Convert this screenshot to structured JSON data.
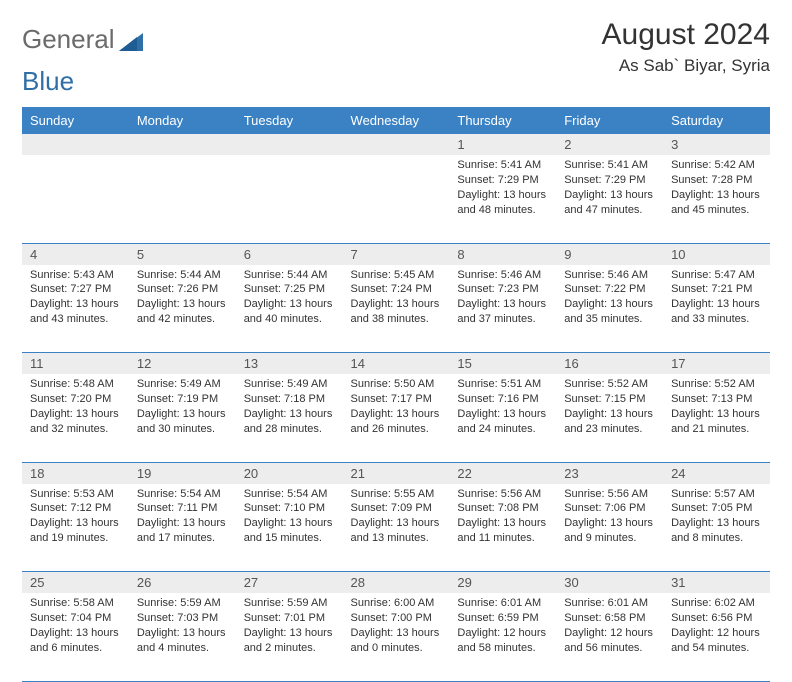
{
  "logo": {
    "text1": "General",
    "text2": "Blue",
    "color1": "#6b6b6b",
    "color2": "#2f6fa8"
  },
  "title": "August 2024",
  "location": "As Sab` Biyar, Syria",
  "header_bg": "#3b82c4",
  "daynum_bg": "#ededed",
  "border_color": "#3b82c4",
  "days": [
    "Sunday",
    "Monday",
    "Tuesday",
    "Wednesday",
    "Thursday",
    "Friday",
    "Saturday"
  ],
  "weeks": [
    [
      null,
      null,
      null,
      null,
      {
        "n": "1",
        "sr": "5:41 AM",
        "ss": "7:29 PM",
        "dh": "13",
        "dm": "48"
      },
      {
        "n": "2",
        "sr": "5:41 AM",
        "ss": "7:29 PM",
        "dh": "13",
        "dm": "47"
      },
      {
        "n": "3",
        "sr": "5:42 AM",
        "ss": "7:28 PM",
        "dh": "13",
        "dm": "45"
      }
    ],
    [
      {
        "n": "4",
        "sr": "5:43 AM",
        "ss": "7:27 PM",
        "dh": "13",
        "dm": "43"
      },
      {
        "n": "5",
        "sr": "5:44 AM",
        "ss": "7:26 PM",
        "dh": "13",
        "dm": "42"
      },
      {
        "n": "6",
        "sr": "5:44 AM",
        "ss": "7:25 PM",
        "dh": "13",
        "dm": "40"
      },
      {
        "n": "7",
        "sr": "5:45 AM",
        "ss": "7:24 PM",
        "dh": "13",
        "dm": "38"
      },
      {
        "n": "8",
        "sr": "5:46 AM",
        "ss": "7:23 PM",
        "dh": "13",
        "dm": "37"
      },
      {
        "n": "9",
        "sr": "5:46 AM",
        "ss": "7:22 PM",
        "dh": "13",
        "dm": "35"
      },
      {
        "n": "10",
        "sr": "5:47 AM",
        "ss": "7:21 PM",
        "dh": "13",
        "dm": "33"
      }
    ],
    [
      {
        "n": "11",
        "sr": "5:48 AM",
        "ss": "7:20 PM",
        "dh": "13",
        "dm": "32"
      },
      {
        "n": "12",
        "sr": "5:49 AM",
        "ss": "7:19 PM",
        "dh": "13",
        "dm": "30"
      },
      {
        "n": "13",
        "sr": "5:49 AM",
        "ss": "7:18 PM",
        "dh": "13",
        "dm": "28"
      },
      {
        "n": "14",
        "sr": "5:50 AM",
        "ss": "7:17 PM",
        "dh": "13",
        "dm": "26"
      },
      {
        "n": "15",
        "sr": "5:51 AM",
        "ss": "7:16 PM",
        "dh": "13",
        "dm": "24"
      },
      {
        "n": "16",
        "sr": "5:52 AM",
        "ss": "7:15 PM",
        "dh": "13",
        "dm": "23"
      },
      {
        "n": "17",
        "sr": "5:52 AM",
        "ss": "7:13 PM",
        "dh": "13",
        "dm": "21"
      }
    ],
    [
      {
        "n": "18",
        "sr": "5:53 AM",
        "ss": "7:12 PM",
        "dh": "13",
        "dm": "19"
      },
      {
        "n": "19",
        "sr": "5:54 AM",
        "ss": "7:11 PM",
        "dh": "13",
        "dm": "17"
      },
      {
        "n": "20",
        "sr": "5:54 AM",
        "ss": "7:10 PM",
        "dh": "13",
        "dm": "15"
      },
      {
        "n": "21",
        "sr": "5:55 AM",
        "ss": "7:09 PM",
        "dh": "13",
        "dm": "13"
      },
      {
        "n": "22",
        "sr": "5:56 AM",
        "ss": "7:08 PM",
        "dh": "13",
        "dm": "11"
      },
      {
        "n": "23",
        "sr": "5:56 AM",
        "ss": "7:06 PM",
        "dh": "13",
        "dm": "9"
      },
      {
        "n": "24",
        "sr": "5:57 AM",
        "ss": "7:05 PM",
        "dh": "13",
        "dm": "8"
      }
    ],
    [
      {
        "n": "25",
        "sr": "5:58 AM",
        "ss": "7:04 PM",
        "dh": "13",
        "dm": "6"
      },
      {
        "n": "26",
        "sr": "5:59 AM",
        "ss": "7:03 PM",
        "dh": "13",
        "dm": "4"
      },
      {
        "n": "27",
        "sr": "5:59 AM",
        "ss": "7:01 PM",
        "dh": "13",
        "dm": "2"
      },
      {
        "n": "28",
        "sr": "6:00 AM",
        "ss": "7:00 PM",
        "dh": "13",
        "dm": "0"
      },
      {
        "n": "29",
        "sr": "6:01 AM",
        "ss": "6:59 PM",
        "dh": "12",
        "dm": "58"
      },
      {
        "n": "30",
        "sr": "6:01 AM",
        "ss": "6:58 PM",
        "dh": "12",
        "dm": "56"
      },
      {
        "n": "31",
        "sr": "6:02 AM",
        "ss": "6:56 PM",
        "dh": "12",
        "dm": "54"
      }
    ]
  ]
}
